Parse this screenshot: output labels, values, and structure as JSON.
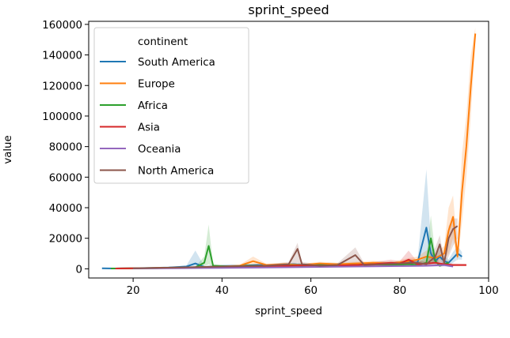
{
  "chart_data": {
    "type": "line",
    "title": "sprint_speed",
    "xlabel": "sprint_speed",
    "ylabel": "value",
    "xlim": [
      10,
      100
    ],
    "ylim": [
      -6000,
      162000
    ],
    "xticks": [
      20,
      40,
      60,
      80,
      100
    ],
    "yticks": [
      0,
      20000,
      40000,
      60000,
      80000,
      100000,
      120000,
      140000,
      160000
    ],
    "grid": false,
    "legend": {
      "title": "continent",
      "position": "top-left"
    },
    "series": [
      {
        "name": "South America",
        "color": "#1f77b4",
        "points": [
          [
            13,
            300
          ],
          [
            16,
            200
          ],
          [
            20,
            400
          ],
          [
            24,
            600
          ],
          [
            28,
            800
          ],
          [
            32,
            1500
          ],
          [
            34,
            3500
          ],
          [
            36,
            1200
          ],
          [
            40,
            1800
          ],
          [
            44,
            2000
          ],
          [
            48,
            2500
          ],
          [
            52,
            2200
          ],
          [
            56,
            3000
          ],
          [
            60,
            2500
          ],
          [
            64,
            3000
          ],
          [
            68,
            2800
          ],
          [
            72,
            3200
          ],
          [
            76,
            3500
          ],
          [
            80,
            3000
          ],
          [
            82,
            4500
          ],
          [
            84,
            4000
          ],
          [
            86,
            27000
          ],
          [
            87,
            10000
          ],
          [
            88,
            5000
          ],
          [
            89,
            8000
          ],
          [
            90,
            5000
          ],
          [
            91,
            4000
          ],
          [
            92,
            7000
          ],
          [
            93,
            10000
          ],
          [
            94,
            8000
          ]
        ],
        "band": [
          [
            13,
            200,
            400
          ],
          [
            16,
            100,
            300
          ],
          [
            20,
            200,
            600
          ],
          [
            24,
            300,
            900
          ],
          [
            28,
            500,
            1100
          ],
          [
            32,
            900,
            2200
          ],
          [
            34,
            1000,
            12000
          ],
          [
            36,
            800,
            1800
          ],
          [
            40,
            1200,
            2500
          ],
          [
            44,
            1400,
            2700
          ],
          [
            48,
            1800,
            3300
          ],
          [
            52,
            1600,
            3000
          ],
          [
            56,
            2200,
            4000
          ],
          [
            60,
            1800,
            3300
          ],
          [
            64,
            2200,
            4000
          ],
          [
            68,
            2000,
            3700
          ],
          [
            72,
            2400,
            4200
          ],
          [
            76,
            2600,
            4600
          ],
          [
            80,
            2200,
            4000
          ],
          [
            82,
            3000,
            6500
          ],
          [
            84,
            2800,
            5500
          ],
          [
            86,
            5000,
            65000
          ],
          [
            87,
            5000,
            18000
          ],
          [
            88,
            3000,
            8000
          ],
          [
            89,
            4000,
            14000
          ],
          [
            90,
            3000,
            9000
          ],
          [
            91,
            2500,
            6000
          ],
          [
            92,
            4000,
            11000
          ],
          [
            93,
            6000,
            15000
          ],
          [
            94,
            6000,
            11000
          ]
        ]
      },
      {
        "name": "Europe",
        "color": "#ff7f0e",
        "points": [
          [
            16,
            200
          ],
          [
            20,
            300
          ],
          [
            24,
            500
          ],
          [
            28,
            700
          ],
          [
            32,
            900
          ],
          [
            36,
            1200
          ],
          [
            40,
            1500
          ],
          [
            44,
            2000
          ],
          [
            47,
            5000
          ],
          [
            50,
            2500
          ],
          [
            54,
            3000
          ],
          [
            58,
            2500
          ],
          [
            62,
            3500
          ],
          [
            66,
            3000
          ],
          [
            70,
            3500
          ],
          [
            74,
            4000
          ],
          [
            78,
            3500
          ],
          [
            82,
            5000
          ],
          [
            84,
            6000
          ],
          [
            86,
            8000
          ],
          [
            88,
            7000
          ],
          [
            90,
            10000
          ],
          [
            91,
            25000
          ],
          [
            92,
            34000
          ],
          [
            93,
            8000
          ],
          [
            94,
            50000
          ],
          [
            95,
            80000
          ],
          [
            96,
            120000
          ],
          [
            97,
            154000
          ]
        ],
        "band": [
          [
            16,
            100,
            300
          ],
          [
            20,
            200,
            450
          ],
          [
            24,
            300,
            700
          ],
          [
            28,
            450,
            950
          ],
          [
            32,
            600,
            1200
          ],
          [
            36,
            800,
            1600
          ],
          [
            40,
            1000,
            2000
          ],
          [
            44,
            1300,
            2700
          ],
          [
            47,
            2000,
            8000
          ],
          [
            50,
            1700,
            3300
          ],
          [
            54,
            2000,
            4000
          ],
          [
            58,
            1700,
            3300
          ],
          [
            62,
            2400,
            4600
          ],
          [
            66,
            2000,
            4000
          ],
          [
            70,
            2400,
            4600
          ],
          [
            74,
            2800,
            5200
          ],
          [
            78,
            2400,
            4600
          ],
          [
            82,
            3000,
            7000
          ],
          [
            84,
            4000,
            8000
          ],
          [
            86,
            5000,
            12000
          ],
          [
            88,
            4500,
            10000
          ],
          [
            90,
            6000,
            15000
          ],
          [
            91,
            10000,
            40000
          ],
          [
            92,
            20000,
            48000
          ],
          [
            93,
            5000,
            12000
          ],
          [
            94,
            30000,
            75000
          ],
          [
            95,
            60000,
            100000
          ],
          [
            96,
            100000,
            140000
          ],
          [
            97,
            150000,
            158000
          ]
        ]
      },
      {
        "name": "Africa",
        "color": "#2ca02c",
        "points": [
          [
            15,
            200
          ],
          [
            20,
            300
          ],
          [
            25,
            400
          ],
          [
            30,
            600
          ],
          [
            34,
            1000
          ],
          [
            36,
            4000
          ],
          [
            37,
            15000
          ],
          [
            38,
            2000
          ],
          [
            42,
            1500
          ],
          [
            46,
            2000
          ],
          [
            50,
            1800
          ],
          [
            54,
            2500
          ],
          [
            58,
            2000
          ],
          [
            62,
            2500
          ],
          [
            66,
            2000
          ],
          [
            70,
            2500
          ],
          [
            74,
            3000
          ],
          [
            78,
            2500
          ],
          [
            82,
            3000
          ],
          [
            84,
            2500
          ],
          [
            86,
            4000
          ],
          [
            87,
            20000
          ],
          [
            88,
            5000
          ],
          [
            89,
            2000
          ],
          [
            90,
            3000
          ],
          [
            91,
            4000
          ]
        ],
        "band": [
          [
            15,
            100,
            300
          ],
          [
            20,
            200,
            450
          ],
          [
            25,
            250,
            600
          ],
          [
            30,
            400,
            900
          ],
          [
            34,
            600,
            1500
          ],
          [
            36,
            1500,
            8000
          ],
          [
            37,
            3000,
            29000
          ],
          [
            38,
            1200,
            3000
          ],
          [
            42,
            1000,
            2200
          ],
          [
            46,
            1300,
            3000
          ],
          [
            50,
            1200,
            2600
          ],
          [
            54,
            1600,
            3600
          ],
          [
            58,
            1300,
            3000
          ],
          [
            62,
            1600,
            3600
          ],
          [
            66,
            1300,
            3000
          ],
          [
            70,
            1600,
            3600
          ],
          [
            74,
            2000,
            4200
          ],
          [
            78,
            1600,
            3600
          ],
          [
            82,
            2000,
            4500
          ],
          [
            84,
            1600,
            3800
          ],
          [
            86,
            2500,
            8000
          ],
          [
            87,
            3000,
            35000
          ],
          [
            88,
            3000,
            9000
          ],
          [
            89,
            1200,
            3000
          ],
          [
            90,
            2000,
            4500
          ],
          [
            91,
            2500,
            6000
          ]
        ]
      },
      {
        "name": "Asia",
        "color": "#d62728",
        "points": [
          [
            16,
            200
          ],
          [
            22,
            400
          ],
          [
            28,
            600
          ],
          [
            34,
            900
          ],
          [
            40,
            1200
          ],
          [
            46,
            1500
          ],
          [
            52,
            1800
          ],
          [
            58,
            2200
          ],
          [
            64,
            2000
          ],
          [
            70,
            2500
          ],
          [
            74,
            3000
          ],
          [
            78,
            4000
          ],
          [
            80,
            3500
          ],
          [
            82,
            6000
          ],
          [
            84,
            3000
          ],
          [
            86,
            3500
          ],
          [
            88,
            4000
          ],
          [
            90,
            3000
          ],
          [
            92,
            2500
          ],
          [
            95,
            2500
          ]
        ],
        "band": [
          [
            16,
            100,
            300
          ],
          [
            22,
            250,
            600
          ],
          [
            28,
            400,
            900
          ],
          [
            34,
            600,
            1300
          ],
          [
            40,
            800,
            1800
          ],
          [
            46,
            1000,
            2200
          ],
          [
            52,
            1200,
            2600
          ],
          [
            58,
            1500,
            3200
          ],
          [
            64,
            1300,
            3000
          ],
          [
            70,
            1600,
            3600
          ],
          [
            74,
            2000,
            4500
          ],
          [
            78,
            2500,
            6000
          ],
          [
            80,
            2200,
            5000
          ],
          [
            82,
            3500,
            12000
          ],
          [
            84,
            2000,
            4500
          ],
          [
            86,
            2200,
            5000
          ],
          [
            88,
            2500,
            6000
          ],
          [
            90,
            2000,
            4500
          ],
          [
            92,
            1800,
            3500
          ],
          [
            95,
            1800,
            3300
          ]
        ]
      },
      {
        "name": "Oceania",
        "color": "#9467bd",
        "points": [
          [
            20,
            200
          ],
          [
            30,
            400
          ],
          [
            40,
            600
          ],
          [
            50,
            900
          ],
          [
            60,
            1200
          ],
          [
            70,
            1500
          ],
          [
            80,
            1800
          ],
          [
            86,
            2000
          ],
          [
            90,
            2500
          ],
          [
            92,
            1500
          ]
        ],
        "band": [
          [
            20,
            100,
            300
          ],
          [
            30,
            250,
            600
          ],
          [
            40,
            400,
            900
          ],
          [
            50,
            600,
            1300
          ],
          [
            60,
            800,
            1700
          ],
          [
            70,
            1000,
            2100
          ],
          [
            80,
            1200,
            2600
          ],
          [
            86,
            1300,
            3000
          ],
          [
            90,
            1500,
            4000
          ],
          [
            92,
            1000,
            2200
          ]
        ]
      },
      {
        "name": "North America",
        "color": "#8c564b",
        "points": [
          [
            20,
            300
          ],
          [
            30,
            800
          ],
          [
            40,
            1500
          ],
          [
            50,
            2000
          ],
          [
            55,
            3000
          ],
          [
            57,
            13000
          ],
          [
            58,
            3000
          ],
          [
            62,
            2000
          ],
          [
            66,
            2500
          ],
          [
            70,
            9000
          ],
          [
            72,
            2500
          ],
          [
            76,
            3000
          ],
          [
            80,
            3500
          ],
          [
            84,
            4000
          ],
          [
            86,
            3000
          ],
          [
            88,
            8000
          ],
          [
            89,
            16000
          ],
          [
            90,
            4000
          ],
          [
            91,
            20000
          ],
          [
            92,
            26000
          ],
          [
            93,
            28000
          ]
        ],
        "band": [
          [
            20,
            200,
            450
          ],
          [
            30,
            500,
            1200
          ],
          [
            40,
            1000,
            2200
          ],
          [
            50,
            1300,
            3000
          ],
          [
            55,
            2000,
            4500
          ],
          [
            57,
            4000,
            17000
          ],
          [
            58,
            2000,
            4500
          ],
          [
            62,
            1300,
            3000
          ],
          [
            66,
            1600,
            3600
          ],
          [
            70,
            3000,
            14000
          ],
          [
            72,
            1600,
            3600
          ],
          [
            76,
            2000,
            4500
          ],
          [
            80,
            2200,
            5000
          ],
          [
            84,
            2500,
            6000
          ],
          [
            86,
            2000,
            4500
          ],
          [
            88,
            4000,
            14000
          ],
          [
            89,
            6000,
            22000
          ],
          [
            90,
            2500,
            6000
          ],
          [
            91,
            8000,
            28000
          ],
          [
            92,
            15000,
            33000
          ],
          [
            93,
            20000,
            33000
          ]
        ]
      }
    ]
  }
}
